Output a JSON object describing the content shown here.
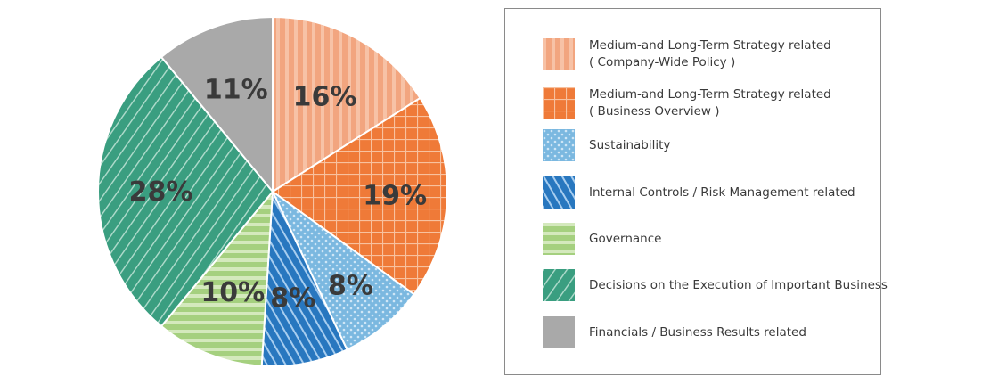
{
  "chart_data": {
    "type": "pie",
    "start": "12 o'clock",
    "direction": "clockwise",
    "slices": [
      {
        "name_lines": [
          "Medium-and Long-Term Strategy related",
          "( Company-Wide Policy )"
        ],
        "value": 16,
        "label": "16%",
        "color": "#f2a57f",
        "pattern": "vertical-stripes"
      },
      {
        "name_lines": [
          "Medium-and Long-Term Strategy related",
          "( Business Overview )"
        ],
        "value": 19,
        "label": "19%",
        "color": "#ef7a38",
        "pattern": "grid"
      },
      {
        "name_lines": [
          "Sustainability"
        ],
        "value": 8,
        "label": "8%",
        "color": "#7bb8e0",
        "pattern": "dots"
      },
      {
        "name_lines": [
          "Internal Controls / Risk Management related"
        ],
        "value": 8,
        "label": "8%",
        "color": "#2877bf",
        "pattern": "backslash-hatch"
      },
      {
        "name_lines": [
          "Governance"
        ],
        "value": 10,
        "label": "10%",
        "color": "#a5d07f",
        "pattern": "horizontal-stripes"
      },
      {
        "name_lines": [
          "Decisions on the Execution of Important Business"
        ],
        "value": 28,
        "label": "28%",
        "color": "#3a9e80",
        "pattern": "slash-hatch"
      },
      {
        "name_lines": [
          "Financials / Business Results related"
        ],
        "value": 11,
        "label": "11%",
        "color": "#a9a9a9",
        "pattern": "solid"
      }
    ]
  }
}
